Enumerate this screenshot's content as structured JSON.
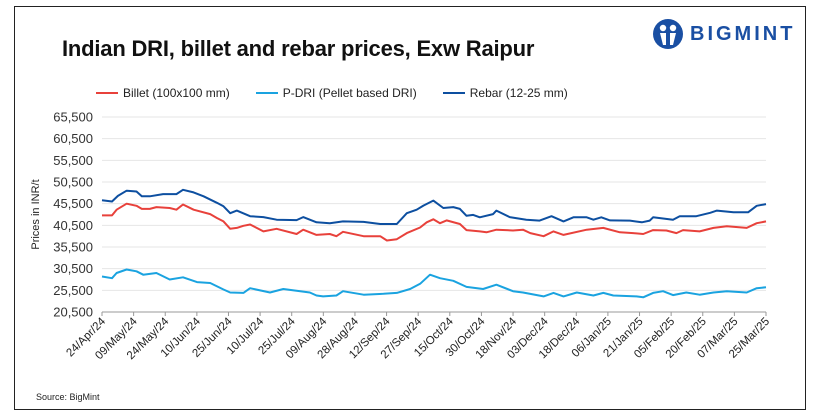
{
  "title": "Indian DRI, billet and rebar prices, Exw  Raipur",
  "logo_text": "BIGMINT",
  "source": "Source: BigMint",
  "chart_data": {
    "type": "line",
    "title": "Indian DRI, billet and rebar prices, Exw  Raipur",
    "xlabel": "",
    "ylabel": "Prices in INR/t",
    "ylim": [
      20500,
      65500
    ],
    "yticks": [
      20500,
      25500,
      30500,
      35500,
      40500,
      45500,
      50500,
      55500,
      60500,
      65500
    ],
    "ytick_labels": [
      "20,500",
      "25,500",
      "30,500",
      "35,500",
      "40,500",
      "45,500",
      "50,500",
      "55,500",
      "60,500",
      "65,500"
    ],
    "x_axis": "position index 0-100 along the date axis",
    "xlim": [
      0,
      100
    ],
    "xtick_labels": [
      "24/Apr/24",
      "09/May/24",
      "24/May/24",
      "10/Jun/24",
      "25/Jun/24",
      "10/Jul/24",
      "25/Jul/24",
      "09/Aug/24",
      "28/Aug/24",
      "12/Sep/24",
      "27/Sep/24",
      "15/Oct/24",
      "30/Oct/24",
      "18/Nov/24",
      "03/Dec/24",
      "18/Dec/24",
      "06/Jan/25",
      "21/Jan/25",
      "05/Feb/25",
      "20/Feb/25",
      "07/Mar/25",
      "25/Mar/25"
    ],
    "grid": true,
    "legend_position": "top",
    "series": [
      {
        "name": "Billet (100x100 mm)",
        "color": "#e8413b",
        "points": [
          [
            0,
            42800
          ],
          [
            1.5,
            42800
          ],
          [
            2.2,
            44100
          ],
          [
            3.7,
            45500
          ],
          [
            5.2,
            45000
          ],
          [
            6,
            44300
          ],
          [
            7.2,
            44300
          ],
          [
            8.2,
            44700
          ],
          [
            10.2,
            44500
          ],
          [
            11.2,
            44100
          ],
          [
            12.2,
            45300
          ],
          [
            13.8,
            44100
          ],
          [
            16.3,
            43100
          ],
          [
            17.3,
            42200
          ],
          [
            18.3,
            41400
          ],
          [
            19.3,
            39700
          ],
          [
            20.3,
            39900
          ],
          [
            21.3,
            40400
          ],
          [
            22.3,
            40700
          ],
          [
            24.3,
            39100
          ],
          [
            26.3,
            39700
          ],
          [
            29.3,
            38500
          ],
          [
            30.3,
            39500
          ],
          [
            32.3,
            38300
          ],
          [
            34.3,
            38500
          ],
          [
            35.3,
            38000
          ],
          [
            36.3,
            39000
          ],
          [
            39.4,
            38000
          ],
          [
            41.9,
            38000
          ],
          [
            42.9,
            37000
          ],
          [
            44.4,
            37300
          ],
          [
            45.9,
            38700
          ],
          [
            47.9,
            40000
          ],
          [
            48.9,
            41200
          ],
          [
            49.9,
            41900
          ],
          [
            50.9,
            41000
          ],
          [
            51.9,
            41650
          ],
          [
            53.9,
            40800
          ],
          [
            54.9,
            39400
          ],
          [
            56.9,
            39100
          ],
          [
            57.9,
            38900
          ],
          [
            59.4,
            39500
          ],
          [
            61.9,
            39300
          ],
          [
            63.4,
            39500
          ],
          [
            64.5,
            38700
          ],
          [
            66.5,
            38000
          ],
          [
            68,
            39100
          ],
          [
            69.5,
            38300
          ],
          [
            73,
            39500
          ],
          [
            75.5,
            39900
          ],
          [
            78,
            38900
          ],
          [
            80,
            38700
          ],
          [
            81.5,
            38500
          ],
          [
            83,
            39400
          ],
          [
            85,
            39300
          ],
          [
            86.5,
            38700
          ],
          [
            87.5,
            39400
          ],
          [
            90,
            39100
          ],
          [
            92.1,
            39900
          ],
          [
            94.1,
            40300
          ],
          [
            97.1,
            39900
          ],
          [
            98.6,
            41000
          ],
          [
            100,
            41400
          ]
        ]
      },
      {
        "name": "P-DRI (Pellet based DRI)",
        "color": "#1aa3e0",
        "points": [
          [
            0,
            28700
          ],
          [
            1.5,
            28300
          ],
          [
            2.2,
            29500
          ],
          [
            3.7,
            30300
          ],
          [
            5.2,
            29900
          ],
          [
            6.2,
            29100
          ],
          [
            8.2,
            29500
          ],
          [
            10.2,
            28000
          ],
          [
            12.2,
            28500
          ],
          [
            14.3,
            27400
          ],
          [
            16.3,
            27200
          ],
          [
            18.3,
            25700
          ],
          [
            19.3,
            25000
          ],
          [
            21.3,
            24900
          ],
          [
            22.3,
            26000
          ],
          [
            25.3,
            25000
          ],
          [
            27.3,
            25800
          ],
          [
            31.3,
            25000
          ],
          [
            32.3,
            24300
          ],
          [
            33.3,
            24100
          ],
          [
            35.3,
            24300
          ],
          [
            36.3,
            25300
          ],
          [
            39.4,
            24500
          ],
          [
            42.4,
            24700
          ],
          [
            44.4,
            24900
          ],
          [
            46.4,
            25800
          ],
          [
            47.9,
            27000
          ],
          [
            49.4,
            29100
          ],
          [
            50.9,
            28300
          ],
          [
            52.9,
            27700
          ],
          [
            54.9,
            26300
          ],
          [
            57.4,
            25800
          ],
          [
            59.4,
            26800
          ],
          [
            61.9,
            25300
          ],
          [
            63.4,
            25000
          ],
          [
            66.5,
            24100
          ],
          [
            68,
            24900
          ],
          [
            69.5,
            24100
          ],
          [
            71.5,
            25000
          ],
          [
            74,
            24300
          ],
          [
            75.5,
            24900
          ],
          [
            77,
            24300
          ],
          [
            80.5,
            24100
          ],
          [
            81.5,
            23900
          ],
          [
            83,
            24900
          ],
          [
            84.5,
            25300
          ],
          [
            86,
            24400
          ],
          [
            88,
            25000
          ],
          [
            90,
            24500
          ],
          [
            92.1,
            25000
          ],
          [
            94.1,
            25300
          ],
          [
            97.1,
            25000
          ],
          [
            98.6,
            26000
          ],
          [
            100,
            26200
          ]
        ]
      },
      {
        "name": "Rebar (12-25 mm)",
        "color": "#0d4fa0",
        "points": [
          [
            0,
            46300
          ],
          [
            1.5,
            46000
          ],
          [
            2.4,
            47300
          ],
          [
            3.7,
            48500
          ],
          [
            5.2,
            48300
          ],
          [
            6,
            47200
          ],
          [
            7.2,
            47200
          ],
          [
            9.2,
            47700
          ],
          [
            11.2,
            47700
          ],
          [
            12.2,
            48700
          ],
          [
            13.8,
            48100
          ],
          [
            15.3,
            47200
          ],
          [
            17.3,
            45700
          ],
          [
            18.3,
            44900
          ],
          [
            19.3,
            43300
          ],
          [
            20.3,
            43900
          ],
          [
            22.3,
            42600
          ],
          [
            24.3,
            42400
          ],
          [
            26.3,
            41800
          ],
          [
            29.3,
            41700
          ],
          [
            30.3,
            42400
          ],
          [
            32.3,
            41200
          ],
          [
            34.3,
            41000
          ],
          [
            36.3,
            41400
          ],
          [
            39.4,
            41300
          ],
          [
            41.9,
            40800
          ],
          [
            44.4,
            40800
          ],
          [
            45.9,
            43300
          ],
          [
            47.4,
            44100
          ],
          [
            48.4,
            45050
          ],
          [
            49.9,
            46200
          ],
          [
            51.4,
            44500
          ],
          [
            52.9,
            44700
          ],
          [
            53.9,
            44300
          ],
          [
            54.9,
            42700
          ],
          [
            55.9,
            42900
          ],
          [
            56.9,
            42350
          ],
          [
            58.9,
            43100
          ],
          [
            59.4,
            43900
          ],
          [
            61.4,
            42400
          ],
          [
            63.9,
            41800
          ],
          [
            65.9,
            41600
          ],
          [
            67.7,
            42600
          ],
          [
            69.5,
            41400
          ],
          [
            71,
            42350
          ],
          [
            73,
            42350
          ],
          [
            74,
            41800
          ],
          [
            75.2,
            42350
          ],
          [
            76.5,
            41650
          ],
          [
            79.5,
            41600
          ],
          [
            81.3,
            41200
          ],
          [
            82.5,
            41600
          ],
          [
            83,
            42350
          ],
          [
            86,
            41800
          ],
          [
            87,
            42600
          ],
          [
            89.5,
            42600
          ],
          [
            91.6,
            43400
          ],
          [
            92.6,
            43900
          ],
          [
            95.1,
            43500
          ],
          [
            97.3,
            43500
          ],
          [
            98.6,
            45000
          ],
          [
            100,
            45400
          ]
        ]
      }
    ]
  }
}
